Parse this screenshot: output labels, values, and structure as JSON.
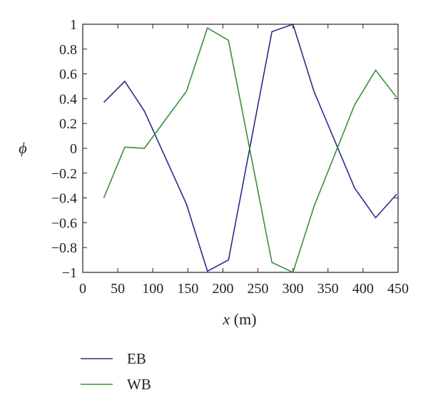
{
  "chart_data": {
    "type": "line",
    "xlabel_var": "x",
    "xlabel_unit": " (m)",
    "ylabel": "ϕ",
    "xlim": [
      0,
      450
    ],
    "ylim": [
      -1,
      1
    ],
    "xticks": [
      0,
      50,
      100,
      150,
      200,
      250,
      300,
      350,
      400,
      450
    ],
    "xtick_labels": [
      "0",
      "50",
      "100",
      "150",
      "200",
      "250",
      "300",
      "350",
      "400",
      "450"
    ],
    "yticks": [
      -1,
      -0.8,
      -0.6,
      -0.4,
      -0.2,
      0,
      0.2,
      0.4,
      0.6,
      0.8,
      1
    ],
    "ytick_labels": [
      "−1",
      "−0.8",
      "−0.6",
      "−0.4",
      "−0.2",
      "0",
      "0.2",
      "0.4",
      "0.6",
      "0.8",
      "1"
    ],
    "grid": false,
    "legend_position": "below",
    "series": [
      {
        "name": "EB",
        "color": "#2b2b8c",
        "x": [
          30,
          60,
          88,
          148,
          178,
          208,
          270,
          300,
          330,
          388,
          418,
          448
        ],
        "y": [
          0.37,
          0.54,
          0.3,
          -0.45,
          -0.99,
          -0.9,
          0.94,
          1.0,
          0.46,
          -0.32,
          -0.56,
          -0.37
        ]
      },
      {
        "name": "WB",
        "color": "#3a8f3a",
        "x": [
          30,
          60,
          88,
          148,
          178,
          208,
          270,
          300,
          330,
          388,
          418,
          448
        ],
        "y": [
          -0.4,
          0.01,
          0.0,
          0.46,
          0.97,
          0.87,
          -0.92,
          -1.0,
          -0.47,
          0.35,
          0.63,
          0.41
        ]
      }
    ]
  }
}
